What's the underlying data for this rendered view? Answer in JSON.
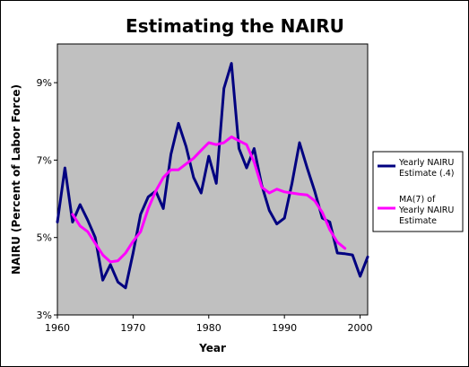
{
  "chart_data": {
    "type": "line",
    "title": "Estimating the NAIRU",
    "xlabel": "Year",
    "ylabel": "NAIRU (Percent of Labor Force)",
    "xlim": [
      1960,
      2001
    ],
    "ylim": [
      3,
      10
    ],
    "x_ticks": [
      1960,
      1970,
      1980,
      1990,
      2000
    ],
    "y_ticks": [
      3,
      5,
      7,
      9
    ],
    "y_tick_labels": [
      "3%",
      "5%",
      "7%",
      "9%"
    ],
    "grid": false,
    "plot_background": "#c0c0c0",
    "legend_position": "right",
    "series": [
      {
        "name": "Yearly NAIRU Estimate (.4)",
        "color": "#000080",
        "x": [
          1960,
          1961,
          1962,
          1963,
          1964,
          1965,
          1966,
          1967,
          1968,
          1969,
          1970,
          1971,
          1972,
          1973,
          1974,
          1975,
          1976,
          1977,
          1978,
          1979,
          1980,
          1981,
          1982,
          1983,
          1984,
          1985,
          1986,
          1987,
          1988,
          1989,
          1990,
          1991,
          1992,
          1993,
          1994,
          1995,
          1996,
          1997,
          1998,
          1999,
          2000,
          2001
        ],
        "values": [
          5.4,
          6.8,
          5.4,
          5.85,
          5.45,
          5.0,
          3.9,
          4.3,
          3.85,
          3.7,
          4.6,
          5.6,
          6.05,
          6.2,
          5.75,
          7.15,
          7.95,
          7.35,
          6.55,
          6.15,
          7.1,
          6.4,
          8.85,
          9.5,
          7.3,
          6.8,
          7.3,
          6.35,
          5.7,
          5.35,
          5.5,
          6.4,
          7.45,
          6.8,
          6.2,
          5.5,
          5.4,
          4.6,
          4.58,
          4.55,
          4.0,
          4.5
        ]
      },
      {
        "name": "MA(7) of Yearly NAIRU Estimate",
        "color": "#ff00ff",
        "x": [
          1962,
          1963,
          1964,
          1965,
          1966,
          1967,
          1968,
          1969,
          1970,
          1971,
          1972,
          1973,
          1974,
          1975,
          1976,
          1977,
          1978,
          1979,
          1980,
          1981,
          1982,
          1983,
          1984,
          1985,
          1986,
          1987,
          1988,
          1989,
          1990,
          1991,
          1992,
          1993,
          1994,
          1995,
          1996,
          1997,
          1998
        ],
        "values": [
          5.6,
          5.3,
          5.15,
          4.85,
          4.55,
          4.37,
          4.4,
          4.6,
          4.9,
          5.15,
          5.75,
          6.2,
          6.55,
          6.75,
          6.75,
          6.9,
          7.05,
          7.25,
          7.45,
          7.4,
          7.45,
          7.6,
          7.5,
          7.4,
          6.95,
          6.3,
          6.15,
          6.25,
          6.18,
          6.15,
          6.12,
          6.1,
          5.95,
          5.65,
          5.2,
          4.88,
          4.72
        ]
      }
    ]
  }
}
